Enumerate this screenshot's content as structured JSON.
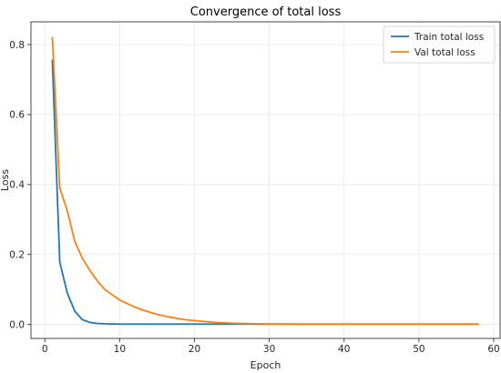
{
  "chart_data": {
    "type": "line",
    "title": "Convergence of total loss",
    "xlabel": "Epoch",
    "ylabel": "Loss",
    "xlim": [
      -1.85,
      60.85
    ],
    "ylim": [
      -0.04,
      0.865
    ],
    "xticks": [
      0,
      10,
      20,
      30,
      40,
      50,
      60
    ],
    "yticks": [
      0.0,
      0.2,
      0.4,
      0.6,
      0.8
    ],
    "ytick_labels": [
      "0.0",
      "0.2",
      "0.4",
      "0.6",
      "0.8"
    ],
    "grid": true,
    "legend_position": "top-right",
    "x": [
      1,
      2,
      3,
      4,
      5,
      6,
      7,
      8,
      9,
      10,
      11,
      12,
      13,
      14,
      15,
      16,
      17,
      18,
      19,
      20,
      21,
      22,
      23,
      24,
      25,
      26,
      27,
      28,
      29,
      30,
      31,
      32,
      33,
      34,
      35,
      36,
      37,
      38,
      39,
      40,
      41,
      42,
      43,
      44,
      45,
      46,
      47,
      48,
      49,
      50,
      51,
      52,
      53,
      54,
      55,
      56,
      57,
      58
    ],
    "series": [
      {
        "name": "Train total loss",
        "color": "#1f77b4",
        "values": [
          0.757,
          0.178,
          0.09,
          0.038,
          0.014,
          0.006,
          0.003,
          0.002,
          0.0015,
          0.001,
          0.001,
          0.001,
          0.001,
          0.001,
          0.001,
          0.001,
          0.001,
          0.001,
          0.001,
          0.001,
          0.001,
          0.001,
          0.001,
          0.001,
          0.001,
          0.001,
          0.001,
          0.001,
          0.001,
          0.001,
          0.001,
          0.001,
          0.001,
          0.001,
          0.001,
          0.001,
          0.001,
          0.001,
          0.001,
          0.001,
          0.001,
          0.001,
          0.001,
          0.001,
          0.001,
          0.001,
          0.001,
          0.001,
          0.001,
          0.001,
          0.001,
          0.001,
          0.001,
          0.001,
          0.001,
          0.001,
          0.001,
          0.001
        ]
      },
      {
        "name": "Val total loss",
        "color": "#ff7f0e",
        "values": [
          0.822,
          0.39,
          0.325,
          0.238,
          0.19,
          0.155,
          0.125,
          0.1,
          0.085,
          0.07,
          0.06,
          0.05,
          0.042,
          0.035,
          0.029,
          0.024,
          0.02,
          0.016,
          0.013,
          0.011,
          0.009,
          0.007,
          0.0055,
          0.0045,
          0.0035,
          0.003,
          0.0025,
          0.002,
          0.0018,
          0.0015,
          0.0013,
          0.0012,
          0.0011,
          0.001,
          0.001,
          0.001,
          0.001,
          0.001,
          0.001,
          0.001,
          0.001,
          0.001,
          0.001,
          0.001,
          0.001,
          0.001,
          0.001,
          0.001,
          0.001,
          0.001,
          0.001,
          0.001,
          0.001,
          0.001,
          0.001,
          0.001,
          0.001,
          0.001
        ]
      }
    ]
  }
}
